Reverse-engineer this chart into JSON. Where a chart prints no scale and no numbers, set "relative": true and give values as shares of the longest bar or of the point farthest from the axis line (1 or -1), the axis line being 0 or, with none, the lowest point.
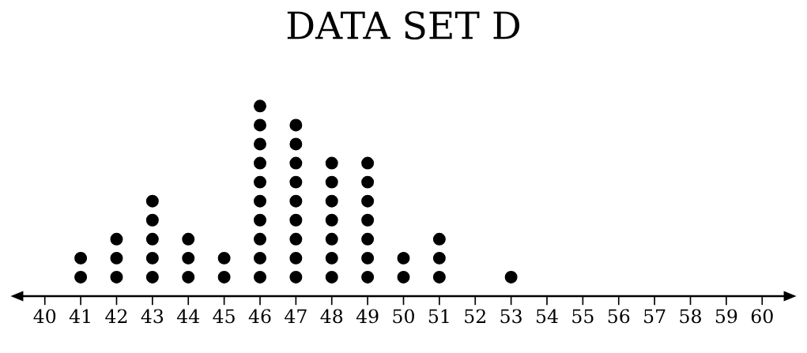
{
  "chart_data": {
    "type": "scatter",
    "title": "DATA SET D",
    "relative": true,
    "marker": "circle",
    "grid": false,
    "tick_labels": "x",
    "xlim": [
      39.2,
      60.8
    ],
    "xticks": [
      40,
      41,
      42,
      43,
      44,
      45,
      46,
      47,
      48,
      49,
      50,
      51,
      52,
      53,
      54,
      55,
      56,
      57,
      58,
      59,
      60
    ],
    "series": [
      {
        "color": "#000000",
        "x": [
          41,
          41,
          42,
          42,
          42,
          43,
          43,
          43,
          43,
          43,
          44,
          44,
          44,
          45,
          45,
          46,
          46,
          46,
          46,
          46,
          46,
          46,
          46,
          46,
          46,
          47,
          47,
          47,
          47,
          47,
          47,
          47,
          47,
          47,
          48,
          48,
          48,
          48,
          48,
          48,
          48,
          49,
          49,
          49,
          49,
          49,
          49,
          49,
          50,
          50,
          51,
          51,
          51,
          53
        ],
        "values": [
          0.1,
          0.2,
          0.1,
          0.2,
          0.3,
          0.1,
          0.2,
          0.3,
          0.4,
          0.5,
          0.1,
          0.2,
          0.3,
          0.1,
          0.2,
          0.1,
          0.2,
          0.3,
          0.4,
          0.5,
          0.6,
          0.7,
          0.8,
          0.9,
          1.0,
          0.1,
          0.2,
          0.3,
          0.4,
          0.5,
          0.6,
          0.7,
          0.8,
          0.9,
          0.1,
          0.2,
          0.3,
          0.4,
          0.5,
          0.6,
          0.7,
          0.1,
          0.2,
          0.3,
          0.4,
          0.5,
          0.6,
          0.7,
          0.1,
          0.2,
          0.1,
          0.2,
          0.3,
          0.1
        ]
      }
    ]
  }
}
